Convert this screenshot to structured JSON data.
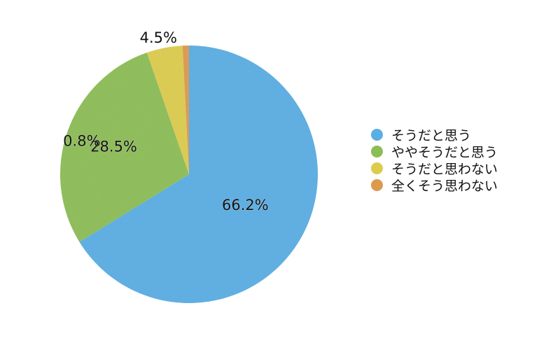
{
  "chart_data": {
    "type": "pie",
    "start_angle_deg": 0,
    "direction": "clockwise",
    "series": [
      {
        "name": "",
        "slices": [
          {
            "label": "そうだと思う",
            "value": 66.2,
            "display": "66.2%",
            "color": "#5aaee3"
          },
          {
            "label": "ややそうだと思う",
            "value": 28.5,
            "display": "28.5%",
            "color": "#8dbd55"
          },
          {
            "label": "そうだと思わない",
            "value": 4.5,
            "display": "4.5%",
            "color": "#dccc4c"
          },
          {
            "label": "全くそう思わない",
            "value": 0.8,
            "display": "0.8%",
            "color": "#dc9a4e"
          }
        ]
      }
    ],
    "legend_position": "right",
    "title": ""
  },
  "legend": {
    "items": [
      {
        "label": "そうだと思う",
        "color": "#5aaee3"
      },
      {
        "label": "ややそうだと思う",
        "color": "#8dbd55"
      },
      {
        "label": "そうだと思わない",
        "color": "#dccc4c"
      },
      {
        "label": "全くそう思わない",
        "color": "#dc9a4e"
      }
    ]
  }
}
